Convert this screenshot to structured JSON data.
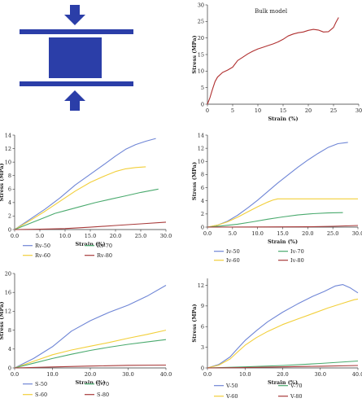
{
  "colors": {
    "loading_diagram": "#2b3ea8",
    "blue": "#6f86d6",
    "yellow": "#f2cf3a",
    "green": "#4aaa6e",
    "red": "#a83a3a",
    "bulk": "#b03030"
  },
  "icons": [
    "compression-arrow-down-icon",
    "compression-arrow-up-icon",
    "specimen-block-icon"
  ],
  "chart_data": [
    {
      "id": "bulk",
      "type": "line",
      "annotation": "Bulk model",
      "xlabel": "Strain (%)",
      "ylabel": "Stress (MPa)",
      "xlim": [
        0,
        30
      ],
      "ylim": [
        0,
        30
      ],
      "xticks": [
        0,
        5,
        10,
        15,
        20,
        25,
        30
      ],
      "xtick_labels": [
        "0",
        "5",
        "10",
        "15",
        "20",
        "25",
        "30"
      ],
      "yticks": [
        0,
        5,
        10,
        15,
        20,
        25,
        30
      ],
      "ytick_labels": [
        "0",
        "5",
        "10",
        "15",
        "20",
        "25",
        "30"
      ],
      "grid": false,
      "series": [
        {
          "color": "#b03030",
          "x": [
            0,
            0.5,
            1,
            1.5,
            2,
            3,
            4,
            5,
            6,
            7,
            8,
            9,
            10,
            11,
            12,
            13,
            14,
            15,
            16,
            17,
            18,
            19,
            20,
            21,
            22,
            23,
            24,
            25,
            25.5,
            26
          ],
          "y": [
            0,
            2.0,
            4.5,
            6.8,
            8.2,
            9.6,
            10.3,
            11.2,
            13.2,
            14.2,
            15.2,
            16.0,
            16.7,
            17.2,
            17.7,
            18.2,
            18.8,
            19.6,
            20.6,
            21.2,
            21.6,
            21.8,
            22.3,
            22.6,
            22.4,
            21.8,
            21.9,
            23.2,
            24.8,
            26.2
          ]
        }
      ]
    },
    {
      "id": "rv",
      "type": "line",
      "xlabel": "Strain (%)",
      "ylabel": "Stress (MPa)",
      "xlim": [
        0,
        30
      ],
      "ylim": [
        0,
        14
      ],
      "xticks": [
        0,
        5,
        10,
        15,
        20,
        25,
        30
      ],
      "xtick_labels": [
        "0.0",
        "5.0",
        "10.0",
        "15.0",
        "20.0",
        "25.0",
        "30.0"
      ],
      "yticks": [
        0,
        2,
        4,
        6,
        8,
        10,
        12,
        14
      ],
      "ytick_labels": [
        "0",
        "2",
        "4",
        "6",
        "8",
        "10",
        "12",
        "14"
      ],
      "grid": false,
      "legend": [
        "Rv-50",
        "Rv-70",
        "Rv-60",
        "Rv-80"
      ],
      "series": [
        {
          "name": "Rv-50",
          "color": "#6f86d6",
          "x": [
            0,
            3,
            6,
            9,
            12,
            15,
            18,
            20,
            22,
            24,
            26,
            28
          ],
          "y": [
            0,
            1.5,
            3.0,
            4.7,
            6.6,
            8.2,
            9.8,
            10.9,
            11.9,
            12.6,
            13.1,
            13.5
          ]
        },
        {
          "name": "Rv-60",
          "color": "#f2cf3a",
          "x": [
            0,
            3,
            6,
            9,
            12,
            15,
            18,
            20,
            22,
            24,
            26
          ],
          "y": [
            0,
            1.3,
            2.7,
            4.2,
            5.7,
            7.0,
            8.0,
            8.6,
            9.0,
            9.2,
            9.3
          ]
        },
        {
          "name": "Rv-70",
          "color": "#4aaa6e",
          "x": [
            0,
            3,
            6,
            8,
            10,
            13,
            16,
            19,
            22,
            25,
            28.5
          ],
          "y": [
            0,
            0.9,
            1.8,
            2.4,
            2.8,
            3.4,
            4.0,
            4.5,
            5.0,
            5.5,
            6.0
          ]
        },
        {
          "name": "Rv-80",
          "color": "#a83a3a",
          "x": [
            0,
            5,
            10,
            15,
            20,
            25,
            30
          ],
          "y": [
            0,
            0.05,
            0.15,
            0.35,
            0.6,
            0.85,
            1.1
          ]
        }
      ]
    },
    {
      "id": "iv",
      "type": "line",
      "xlabel": "Strain (%)",
      "ylabel": "Stress (MPa)",
      "xlim": [
        0,
        30
      ],
      "ylim": [
        0,
        14
      ],
      "xticks": [
        0,
        5,
        10,
        15,
        20,
        25,
        30
      ],
      "xtick_labels": [
        "0.0",
        "5.0",
        "10.0",
        "15.0",
        "20.0",
        "25.0",
        "30.0"
      ],
      "yticks": [
        0,
        2,
        4,
        6,
        8,
        10,
        12,
        14
      ],
      "ytick_labels": [
        "0",
        "2",
        "4",
        "6",
        "8",
        "10",
        "12",
        "14"
      ],
      "grid": false,
      "legend": [
        "Iv-50",
        "Iv-70",
        "Iv-60",
        "Iv-80"
      ],
      "series": [
        {
          "name": "Iv-50",
          "color": "#6f86d6",
          "x": [
            0,
            2,
            4,
            6,
            8,
            10,
            12,
            14,
            16,
            18,
            20,
            22,
            24,
            26,
            28
          ],
          "y": [
            0,
            0.3,
            0.9,
            1.8,
            2.9,
            4.1,
            5.4,
            6.7,
            7.9,
            9.1,
            10.2,
            11.2,
            12.1,
            12.7,
            12.9
          ]
        },
        {
          "name": "Iv-60",
          "color": "#f2cf3a",
          "x": [
            0,
            2,
            4,
            6,
            8,
            10,
            12,
            13,
            14,
            16,
            20,
            25,
            30
          ],
          "y": [
            0,
            0.3,
            0.8,
            1.5,
            2.3,
            3.1,
            3.8,
            4.1,
            4.3,
            4.3,
            4.3,
            4.3,
            4.3
          ]
        },
        {
          "name": "Iv-70",
          "color": "#4aaa6e",
          "x": [
            0,
            3,
            6,
            9,
            12,
            15,
            18,
            21,
            24,
            27
          ],
          "y": [
            0,
            0.2,
            0.45,
            0.8,
            1.2,
            1.55,
            1.85,
            2.05,
            2.15,
            2.2
          ]
        },
        {
          "name": "Iv-80",
          "color": "#a83a3a",
          "x": [
            0,
            10,
            20,
            25,
            30
          ],
          "y": [
            0,
            0.02,
            0.05,
            0.12,
            0.25
          ]
        }
      ]
    },
    {
      "id": "s",
      "type": "line",
      "xlabel": "Strain (%)",
      "ylabel": "Stress (MPa)",
      "xlim": [
        0,
        40
      ],
      "ylim": [
        0,
        20
      ],
      "xticks": [
        0,
        10,
        20,
        30,
        40
      ],
      "xtick_labels": [
        "0.0",
        "10.0",
        "20.0",
        "30.0",
        "40.0"
      ],
      "yticks": [
        0,
        4,
        8,
        12,
        16,
        20
      ],
      "ytick_labels": [
        "0",
        "4",
        "8",
        "12",
        "16",
        "20"
      ],
      "grid": false,
      "legend": [
        "S-50",
        "S-70",
        "S-60",
        "S-80"
      ],
      "series": [
        {
          "name": "S-50",
          "color": "#6f86d6",
          "x": [
            0,
            5,
            10,
            15,
            20,
            25,
            30,
            35,
            40
          ],
          "y": [
            0,
            2.0,
            4.5,
            7.8,
            10.0,
            11.8,
            13.3,
            15.2,
            17.5
          ]
        },
        {
          "name": "S-60",
          "color": "#f2cf3a",
          "x": [
            0,
            5,
            10,
            15,
            20,
            25,
            30,
            35,
            40
          ],
          "y": [
            0,
            1.4,
            2.8,
            3.8,
            4.6,
            5.4,
            6.3,
            7.1,
            8.0
          ]
        },
        {
          "name": "S-70",
          "color": "#4aaa6e",
          "x": [
            0,
            5,
            10,
            15,
            20,
            25,
            30,
            35,
            40
          ],
          "y": [
            0,
            1.0,
            2.0,
            2.9,
            3.7,
            4.4,
            5.0,
            5.5,
            6.0
          ]
        },
        {
          "name": "S-80",
          "color": "#a83a3a",
          "x": [
            0,
            10,
            20,
            30,
            40
          ],
          "y": [
            0,
            0.2,
            0.4,
            0.55,
            0.6
          ]
        }
      ]
    },
    {
      "id": "v",
      "type": "line",
      "xlabel": "Strain (%)",
      "ylabel": "Stress (MPa)",
      "xlim": [
        0,
        40
      ],
      "ylim": [
        0,
        13
      ],
      "xticks": [
        0,
        10,
        20,
        30,
        40
      ],
      "xtick_labels": [
        "0.0",
        "10.0",
        "20.0",
        "30.0",
        "40.0"
      ],
      "yticks": [
        0,
        3,
        6,
        9,
        12
      ],
      "ytick_labels": [
        "0",
        "3",
        "6",
        "9",
        "12"
      ],
      "grid": false,
      "legend": [
        "V-50",
        "V-70",
        "V-60",
        "V-80"
      ],
      "series": [
        {
          "name": "V-50",
          "color": "#6f86d6",
          "x": [
            0,
            3,
            6,
            8,
            10,
            13,
            16,
            20,
            24,
            28,
            31,
            34,
            36,
            38,
            40
          ],
          "y": [
            0,
            0.5,
            1.6,
            2.8,
            4.0,
            5.4,
            6.7,
            8.1,
            9.3,
            10.4,
            11.1,
            11.9,
            12.1,
            11.6,
            10.9
          ]
        },
        {
          "name": "V-60",
          "color": "#f2cf3a",
          "x": [
            0,
            3,
            6,
            8,
            10,
            13,
            16,
            20,
            24,
            28,
            32,
            36,
            39,
            40
          ],
          "y": [
            0,
            0.4,
            1.3,
            2.3,
            3.3,
            4.4,
            5.3,
            6.3,
            7.1,
            7.9,
            8.7,
            9.4,
            9.9,
            10.0
          ]
        },
        {
          "name": "V-70",
          "color": "#4aaa6e",
          "x": [
            0,
            10,
            20,
            30,
            40
          ],
          "y": [
            0,
            0.15,
            0.35,
            0.65,
            1.0
          ]
        },
        {
          "name": "V-80",
          "color": "#a83a3a",
          "x": [
            0,
            10,
            20,
            30,
            40
          ],
          "y": [
            0,
            0.05,
            0.15,
            0.25,
            0.35
          ]
        }
      ]
    }
  ]
}
